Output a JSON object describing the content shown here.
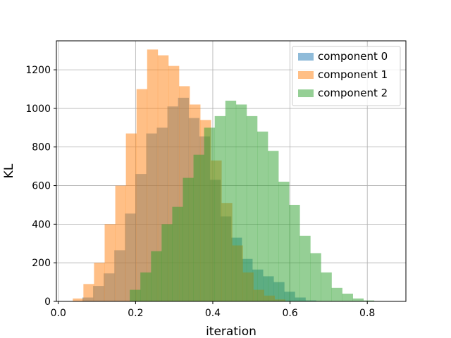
{
  "chart_data": {
    "type": "bar",
    "subtype": "overlapping-histogram",
    "xlabel": "iteration",
    "ylabel": "KL",
    "xlim": [
      -0.005,
      0.9
    ],
    "ylim": [
      0,
      1350
    ],
    "xticks": [
      0.0,
      0.2,
      0.4,
      0.6,
      0.8
    ],
    "xtick_labels": [
      "0.0",
      "0.2",
      "0.4",
      "0.6",
      "0.8"
    ],
    "yticks": [
      0,
      200,
      400,
      600,
      800,
      1000,
      1200
    ],
    "ytick_labels": [
      "0",
      "200",
      "400",
      "600",
      "800",
      "1000",
      "1200"
    ],
    "grid": true,
    "legend_position": "top-right",
    "bar_opacity": 0.5,
    "series": [
      {
        "name": "component 0",
        "color": "#1f77b4",
        "bin_start": 0.0625,
        "bin_width": 0.0275,
        "values": [
          20,
          80,
          145,
          265,
          455,
          660,
          870,
          900,
          1010,
          1055,
          950,
          855,
          630,
          440,
          330,
          220,
          165,
          130,
          100,
          50,
          20,
          5
        ]
      },
      {
        "name": "component 1",
        "color": "#ff7f0e",
        "bin_start": 0.0375,
        "bin_width": 0.0275,
        "values": [
          15,
          90,
          200,
          400,
          600,
          870,
          1100,
          1305,
          1275,
          1220,
          1115,
          1020,
          940,
          730,
          510,
          290,
          150,
          60,
          30,
          10
        ]
      },
      {
        "name": "component 2",
        "color": "#2ca02c",
        "bin_start": 0.185,
        "bin_width": 0.0275,
        "values": [
          60,
          150,
          260,
          400,
          490,
          640,
          760,
          900,
          960,
          1040,
          1020,
          960,
          880,
          780,
          620,
          500,
          340,
          250,
          150,
          70,
          40,
          15,
          5
        ]
      }
    ]
  }
}
